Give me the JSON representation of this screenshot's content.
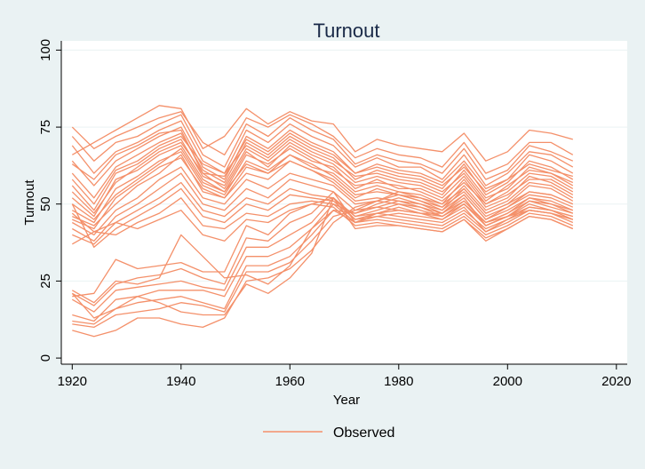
{
  "chart_data": {
    "type": "line",
    "title": "Turnout",
    "xlabel": "Year",
    "ylabel": "Turnout",
    "xlim": [
      1918,
      2022
    ],
    "ylim": [
      -2,
      103
    ],
    "xticks": [
      1920,
      1940,
      1960,
      1980,
      2000,
      2020
    ],
    "yticks": [
      0,
      25,
      50,
      75,
      100
    ],
    "grid": "horizontal",
    "legend_position": "bottom",
    "legend": [
      "Observed"
    ],
    "line_color": "#f4906a",
    "x": [
      1920,
      1924,
      1928,
      1932,
      1936,
      1940,
      1944,
      1948,
      1952,
      1956,
      1960,
      1964,
      1968,
      1972,
      1976,
      1980,
      1984,
      1988,
      1992,
      1996,
      2000,
      2004,
      2008,
      2012
    ],
    "series": [
      {
        "values": [
          66,
          70,
          74,
          78,
          82,
          81,
          68,
          72,
          81,
          76,
          80,
          77,
          76,
          67,
          71,
          69,
          68,
          67,
          73,
          64,
          67,
          74,
          73,
          71
        ]
      },
      {
        "values": [
          75,
          68,
          72,
          75,
          78,
          80,
          70,
          66,
          78,
          75,
          79,
          76,
          72,
          65,
          68,
          66,
          65,
          62,
          70,
          60,
          63,
          70,
          70,
          66
        ]
      },
      {
        "values": [
          72,
          64,
          70,
          72,
          76,
          79,
          66,
          62,
          76,
          72,
          78,
          74,
          71,
          63,
          66,
          64,
          63,
          60,
          68,
          58,
          61,
          69,
          67,
          64
        ]
      },
      {
        "values": [
          69,
          60,
          67,
          70,
          74,
          77,
          64,
          60,
          74,
          70,
          76,
          72,
          69,
          62,
          65,
          62,
          62,
          58,
          66,
          56,
          60,
          67,
          66,
          62
        ]
      },
      {
        "values": [
          64,
          56,
          64,
          68,
          72,
          75,
          62,
          58,
          72,
          68,
          74,
          70,
          67,
          60,
          63,
          61,
          60,
          57,
          64,
          55,
          58,
          66,
          64,
          60
        ]
      },
      {
        "values": [
          60,
          52,
          62,
          66,
          70,
          73,
          61,
          57,
          70,
          66,
          72,
          68,
          65,
          58,
          61,
          59,
          58,
          55,
          63,
          53,
          57,
          64,
          62,
          58
        ]
      },
      {
        "values": [
          56,
          48,
          60,
          63,
          68,
          71,
          59,
          56,
          68,
          64,
          70,
          66,
          63,
          57,
          59,
          57,
          56,
          53,
          61,
          52,
          55,
          62,
          60,
          57
        ]
      },
      {
        "values": [
          52,
          46,
          58,
          61,
          66,
          69,
          58,
          54,
          66,
          63,
          68,
          64,
          62,
          55,
          58,
          55,
          55,
          52,
          59,
          50,
          54,
          60,
          59,
          55
        ]
      },
      {
        "values": [
          48,
          44,
          55,
          59,
          64,
          67,
          56,
          53,
          64,
          61,
          66,
          62,
          60,
          54,
          56,
          54,
          53,
          50,
          58,
          49,
          52,
          59,
          57,
          53
        ]
      },
      {
        "values": [
          45,
          42,
          52,
          57,
          62,
          65,
          55,
          52,
          62,
          60,
          64,
          61,
          58,
          52,
          55,
          53,
          52,
          49,
          56,
          48,
          51,
          57,
          56,
          52
        ]
      },
      {
        "values": [
          63,
          58,
          66,
          69,
          73,
          74,
          60,
          59,
          71,
          67,
          73,
          69,
          66,
          60,
          62,
          60,
          59,
          56,
          62,
          54,
          58,
          63,
          61,
          59
        ]
      },
      {
        "values": [
          58,
          50,
          61,
          64,
          69,
          72,
          63,
          60,
          69,
          65,
          71,
          67,
          64,
          59,
          60,
          58,
          57,
          54,
          60,
          51,
          56,
          61,
          60,
          56
        ]
      },
      {
        "values": [
          54,
          47,
          57,
          62,
          67,
          70,
          60,
          55,
          67,
          62,
          69,
          65,
          61,
          56,
          57,
          56,
          54,
          51,
          57,
          50,
          53,
          58,
          58,
          54
        ]
      },
      {
        "values": [
          50,
          45,
          53,
          58,
          63,
          68,
          57,
          54,
          63,
          60,
          66,
          63,
          59,
          53,
          54,
          53,
          51,
          48,
          55,
          47,
          50,
          56,
          55,
          51
        ]
      },
      {
        "values": [
          46,
          43,
          50,
          56,
          60,
          66,
          54,
          52,
          60,
          58,
          64,
          61,
          57,
          51,
          52,
          51,
          50,
          47,
          53,
          45,
          49,
          54,
          53,
          50
        ]
      },
      {
        "values": [
          44,
          40,
          48,
          52,
          58,
          62,
          52,
          50,
          58,
          55,
          60,
          58,
          56,
          50,
          51,
          50,
          49,
          46,
          51,
          44,
          47,
          52,
          51,
          48
        ]
      },
      {
        "values": [
          42,
          38,
          46,
          50,
          55,
          60,
          50,
          48,
          55,
          52,
          58,
          56,
          54,
          48,
          49,
          48,
          47,
          45,
          50,
          43,
          46,
          51,
          50,
          47
        ]
      },
      {
        "values": [
          40,
          37,
          44,
          48,
          52,
          57,
          48,
          46,
          52,
          50,
          55,
          53,
          52,
          46,
          47,
          46,
          45,
          44,
          48,
          42,
          45,
          49,
          48,
          45
        ]
      },
      {
        "values": [
          50,
          36,
          42,
          46,
          50,
          55,
          46,
          44,
          50,
          48,
          53,
          52,
          51,
          45,
          46,
          45,
          44,
          43,
          47,
          41,
          44,
          48,
          47,
          44
        ]
      },
      {
        "values": [
          47,
          41,
          40,
          44,
          47,
          52,
          43,
          42,
          47,
          46,
          50,
          51,
          50,
          44,
          45,
          44,
          43,
          42,
          46,
          40,
          43,
          47,
          46,
          43
        ]
      },
      {
        "values": [
          37,
          41,
          44,
          42,
          45,
          48,
          40,
          38,
          45,
          44,
          48,
          50,
          49,
          43,
          44,
          43,
          42,
          41,
          45,
          39,
          42,
          46,
          45,
          42
        ]
      },
      {
        "values": [
          20,
          21,
          32,
          29,
          30,
          31,
          28,
          28,
          43,
          40,
          47,
          50,
          52,
          42,
          43,
          43,
          42,
          41,
          45,
          38,
          42,
          46,
          45,
          42
        ]
      },
      {
        "values": [
          21,
          17,
          24,
          26,
          27,
          29,
          26,
          24,
          39,
          38,
          44,
          47,
          54,
          44,
          46,
          47,
          46,
          45,
          49,
          41,
          45,
          48,
          47,
          45
        ]
      },
      {
        "values": [
          19,
          15,
          22,
          23,
          24,
          25,
          23,
          22,
          36,
          36,
          40,
          44,
          52,
          46,
          48,
          50,
          48,
          46,
          50,
          43,
          46,
          50,
          48,
          46
        ]
      },
      {
        "values": [
          14,
          12,
          19,
          20,
          22,
          22,
          22,
          20,
          33,
          33,
          36,
          42,
          50,
          47,
          49,
          51,
          49,
          47,
          51,
          44,
          47,
          51,
          49,
          47
        ]
      },
      {
        "values": [
          12,
          11,
          16,
          18,
          19,
          20,
          18,
          16,
          30,
          30,
          33,
          40,
          48,
          47,
          50,
          52,
          50,
          48,
          53,
          45,
          48,
          52,
          50,
          48
        ]
      },
      {
        "values": [
          11,
          10,
          14,
          15,
          16,
          18,
          17,
          15,
          28,
          28,
          31,
          38,
          46,
          48,
          51,
          53,
          51,
          49,
          54,
          46,
          49,
          53,
          52,
          49
        ]
      },
      {
        "values": [
          9,
          7,
          9,
          13,
          13,
          11,
          10,
          13,
          25,
          26,
          29,
          35,
          44,
          49,
          51,
          54,
          52,
          50,
          55,
          47,
          50,
          54,
          53,
          50
        ]
      },
      {
        "values": [
          22,
          18,
          25,
          24,
          26,
          40,
          33,
          26,
          27,
          24,
          30,
          42,
          48,
          44,
          47,
          48,
          47,
          46,
          50,
          44,
          46,
          49,
          48,
          46
        ]
      },
      {
        "values": [
          21,
          13,
          16,
          20,
          18,
          15,
          14,
          14,
          24,
          21,
          26,
          34,
          52,
          45,
          47,
          49,
          47,
          47,
          52,
          43,
          46,
          48,
          47,
          45
        ]
      }
    ]
  }
}
